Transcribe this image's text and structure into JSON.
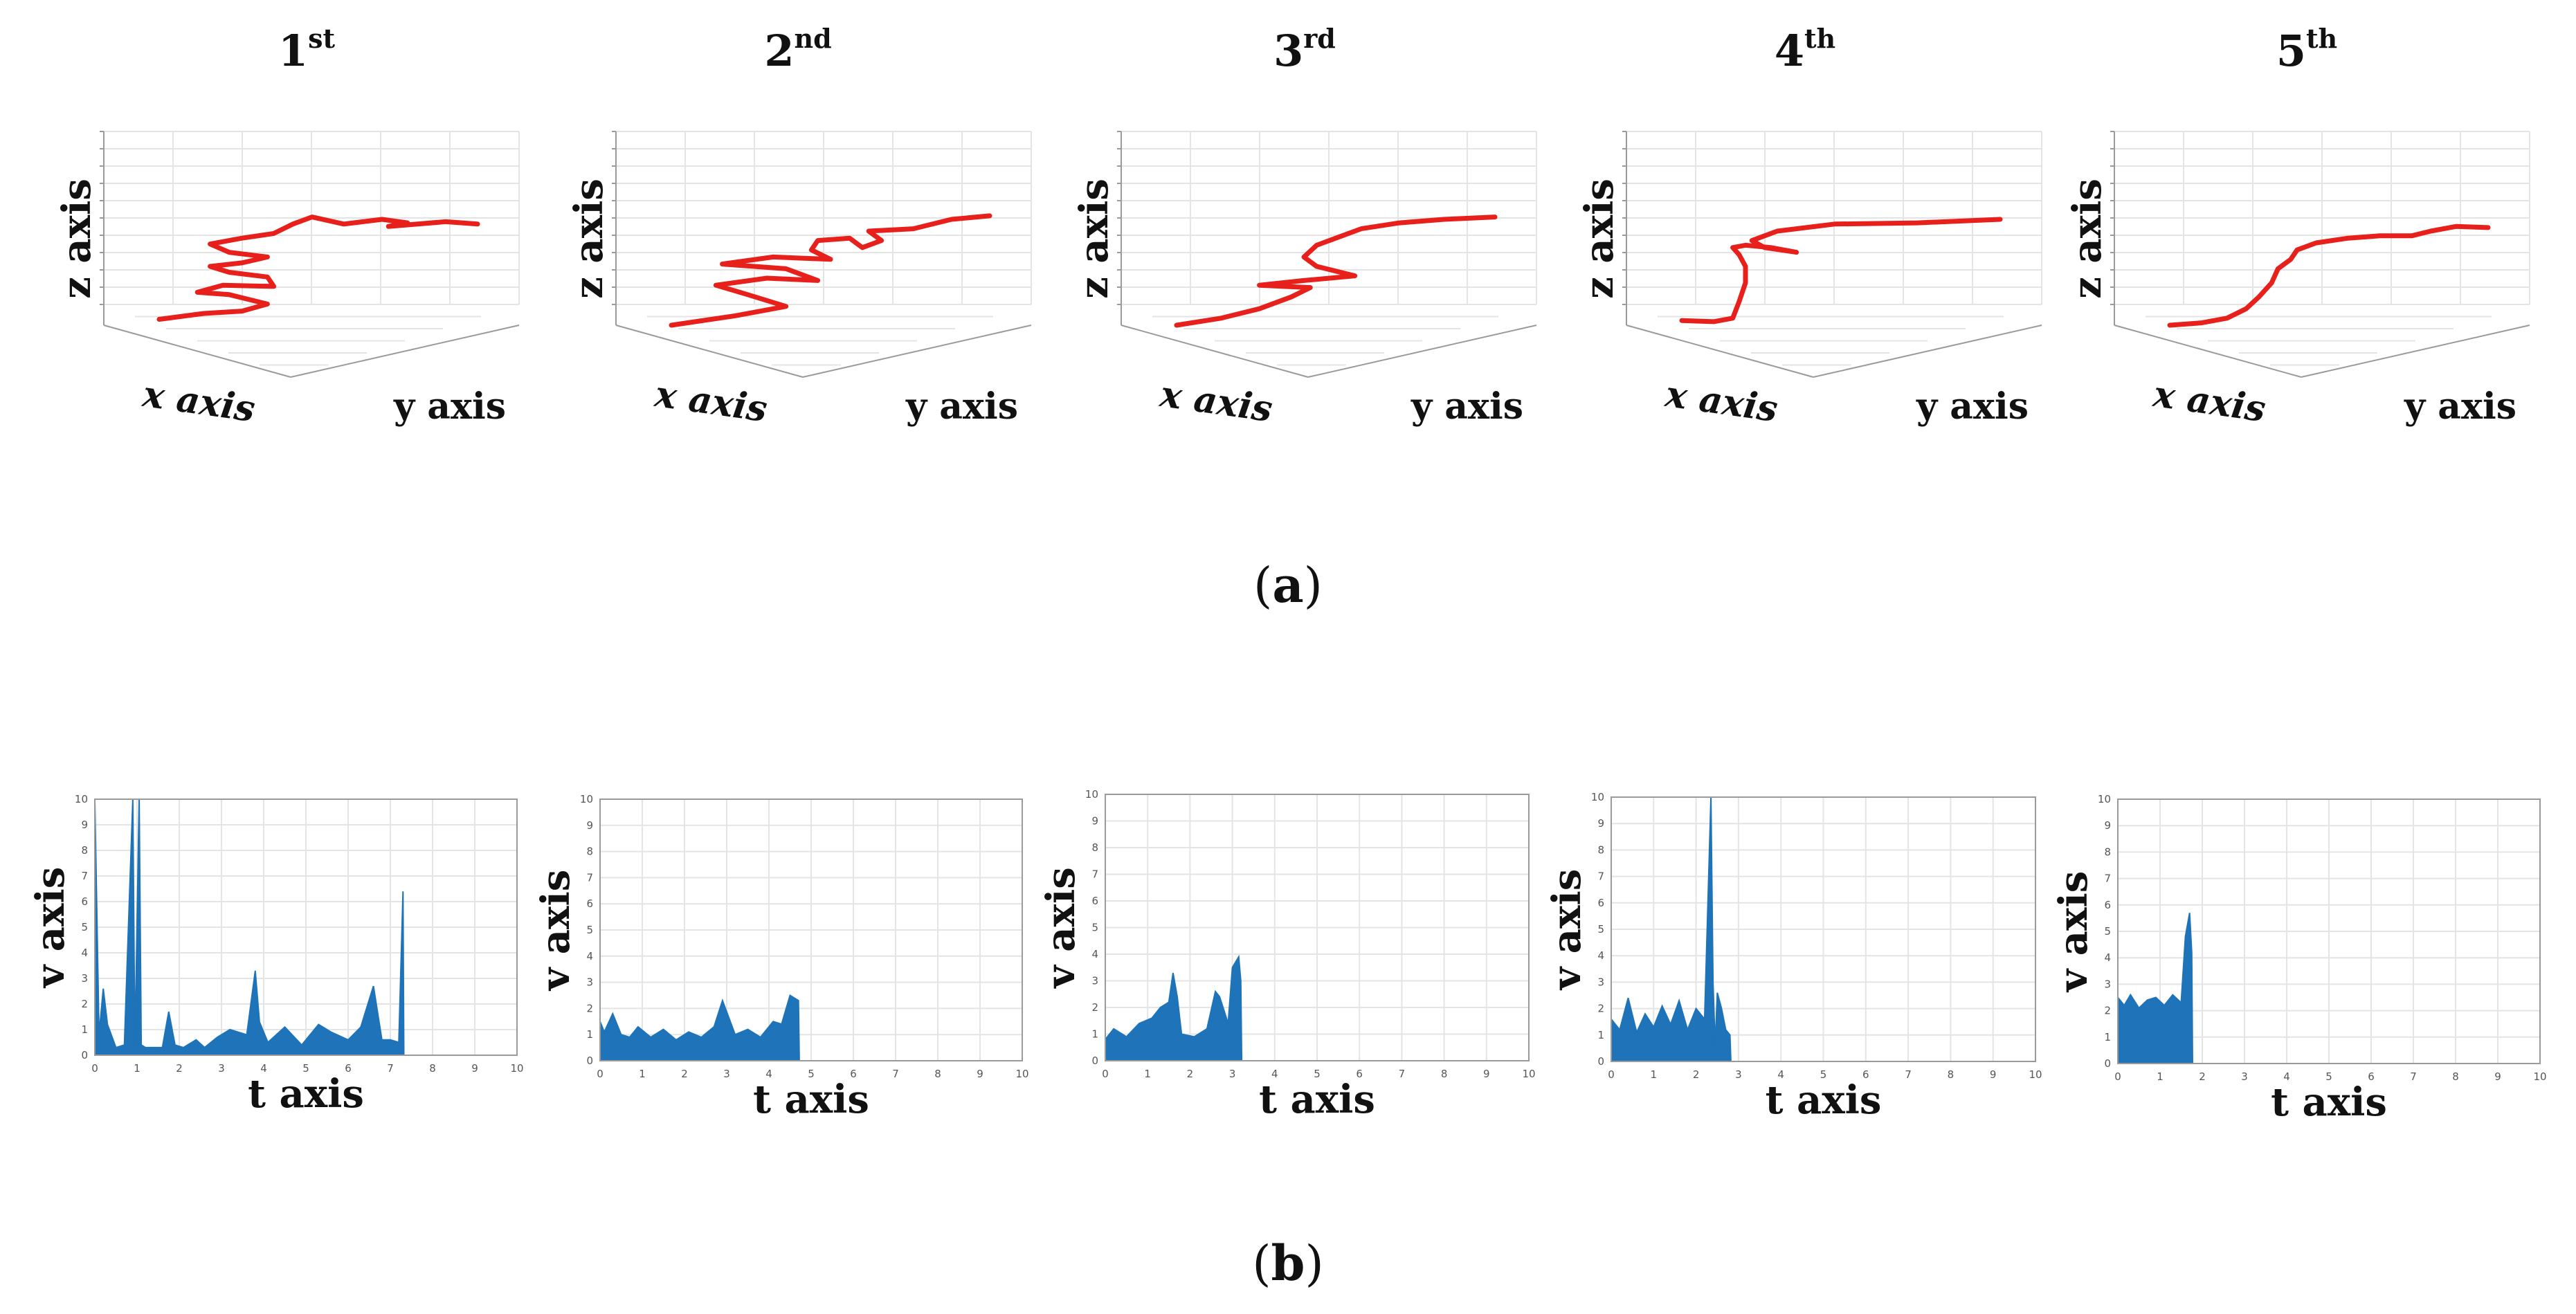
{
  "figure": {
    "panel_a_label": "a",
    "panel_b_label": "b",
    "trials": [
      {
        "num": "1",
        "sup": "st"
      },
      {
        "num": "2",
        "sup": "nd"
      },
      {
        "num": "3",
        "sup": "rd"
      },
      {
        "num": "4",
        "sup": "th"
      },
      {
        "num": "5",
        "sup": "th"
      }
    ],
    "colors": {
      "trajectory": "#e8201c",
      "velocity": "#1f73b8",
      "grid": "#e4e4e4",
      "axis": "#9a9a9a",
      "text": "#111111"
    }
  },
  "chart_data": [
    {
      "type": "line",
      "title": "1st",
      "projection": "3d",
      "xlabel": "x axis",
      "ylabel": "y axis",
      "zlabel": "z axis",
      "path": [
        [
          0,
          0.05
        ],
        [
          0.14,
          0.1
        ],
        [
          0.26,
          0.12
        ],
        [
          0.34,
          0.18
        ],
        [
          0.22,
          0.26
        ],
        [
          0.12,
          0.28
        ],
        [
          0.2,
          0.34
        ],
        [
          0.36,
          0.33
        ],
        [
          0.34,
          0.41
        ],
        [
          0.22,
          0.45
        ],
        [
          0.16,
          0.5
        ],
        [
          0.26,
          0.53
        ],
        [
          0.34,
          0.58
        ],
        [
          0.22,
          0.62
        ],
        [
          0.16,
          0.69
        ],
        [
          0.26,
          0.74
        ],
        [
          0.36,
          0.78
        ],
        [
          0.42,
          0.86
        ],
        [
          0.48,
          0.92
        ],
        [
          0.58,
          0.86
        ],
        [
          0.7,
          0.9
        ],
        [
          0.78,
          0.87
        ],
        [
          0.72,
          0.84
        ],
        [
          0.9,
          0.88
        ],
        [
          1,
          0.86
        ]
      ]
    },
    {
      "type": "line",
      "title": "2nd",
      "projection": "3d",
      "xlabel": "x axis",
      "ylabel": "y axis",
      "zlabel": "z axis",
      "path": [
        [
          0,
          0.0
        ],
        [
          0.2,
          0.08
        ],
        [
          0.36,
          0.16
        ],
        [
          0.24,
          0.26
        ],
        [
          0.14,
          0.34
        ],
        [
          0.3,
          0.4
        ],
        [
          0.46,
          0.38
        ],
        [
          0.36,
          0.48
        ],
        [
          0.16,
          0.52
        ],
        [
          0.32,
          0.58
        ],
        [
          0.5,
          0.56
        ],
        [
          0.44,
          0.64
        ],
        [
          0.46,
          0.72
        ],
        [
          0.56,
          0.74
        ],
        [
          0.6,
          0.66
        ],
        [
          0.66,
          0.72
        ],
        [
          0.62,
          0.8
        ],
        [
          0.76,
          0.82
        ],
        [
          0.88,
          0.9
        ],
        [
          1,
          0.93
        ]
      ]
    },
    {
      "type": "line",
      "title": "3rd",
      "projection": "3d",
      "xlabel": "x axis",
      "ylabel": "y axis",
      "zlabel": "z axis",
      "path": [
        [
          0,
          0.0
        ],
        [
          0.14,
          0.06
        ],
        [
          0.26,
          0.14
        ],
        [
          0.36,
          0.24
        ],
        [
          0.42,
          0.32
        ],
        [
          0.26,
          0.34
        ],
        [
          0.4,
          0.38
        ],
        [
          0.56,
          0.42
        ],
        [
          0.44,
          0.5
        ],
        [
          0.4,
          0.58
        ],
        [
          0.44,
          0.68
        ],
        [
          0.5,
          0.74
        ],
        [
          0.58,
          0.82
        ],
        [
          0.7,
          0.87
        ],
        [
          0.84,
          0.9
        ],
        [
          1,
          0.92
        ]
      ]
    },
    {
      "type": "line",
      "title": "4th",
      "projection": "3d",
      "xlabel": "x axis",
      "ylabel": "y axis",
      "zlabel": "z axis",
      "path": [
        [
          0,
          0.04
        ],
        [
          0.1,
          0.03
        ],
        [
          0.16,
          0.06
        ],
        [
          0.18,
          0.2
        ],
        [
          0.2,
          0.36
        ],
        [
          0.2,
          0.5
        ],
        [
          0.18,
          0.6
        ],
        [
          0.16,
          0.66
        ],
        [
          0.2,
          0.68
        ],
        [
          0.28,
          0.66
        ],
        [
          0.36,
          0.62
        ],
        [
          0.26,
          0.66
        ],
        [
          0.22,
          0.72
        ],
        [
          0.3,
          0.8
        ],
        [
          0.48,
          0.86
        ],
        [
          0.74,
          0.87
        ],
        [
          1,
          0.9
        ]
      ]
    },
    {
      "type": "line",
      "title": "5th",
      "projection": "3d",
      "xlabel": "x axis",
      "ylabel": "y axis",
      "zlabel": "z axis",
      "path": [
        [
          0,
          0.0
        ],
        [
          0.1,
          0.02
        ],
        [
          0.18,
          0.06
        ],
        [
          0.24,
          0.14
        ],
        [
          0.28,
          0.24
        ],
        [
          0.32,
          0.36
        ],
        [
          0.34,
          0.48
        ],
        [
          0.38,
          0.56
        ],
        [
          0.4,
          0.64
        ],
        [
          0.46,
          0.7
        ],
        [
          0.56,
          0.74
        ],
        [
          0.66,
          0.76
        ],
        [
          0.76,
          0.76
        ],
        [
          0.82,
          0.8
        ],
        [
          0.9,
          0.84
        ],
        [
          1,
          0.83
        ]
      ]
    },
    {
      "type": "area",
      "title": "1st",
      "xlabel": "t axis",
      "ylabel": "v axis",
      "xlim": [
        0,
        10
      ],
      "ylim": [
        0,
        10
      ],
      "xticks": [
        "0",
        "1",
        "2",
        "3",
        "4",
        "5",
        "6",
        "7",
        "8",
        "9",
        "10"
      ],
      "yticks": [
        "0",
        "1",
        "2",
        "3",
        "4",
        "5",
        "6",
        "7",
        "8",
        "9",
        "10"
      ],
      "x": [
        0,
        0.1,
        0.2,
        0.3,
        0.5,
        0.7,
        0.9,
        0.95,
        1.05,
        1.1,
        1.2,
        1.6,
        1.75,
        1.9,
        2.1,
        2.4,
        2.6,
        2.9,
        3.2,
        3.6,
        3.8,
        3.9,
        4.1,
        4.5,
        4.9,
        5.3,
        5.6,
        6.0,
        6.3,
        6.6,
        6.8,
        7.0,
        7.2,
        7.3,
        7.32
      ],
      "y": [
        10,
        0.8,
        2.6,
        1.2,
        0.3,
        0.4,
        10,
        0.3,
        10,
        0.4,
        0.3,
        0.3,
        1.7,
        0.4,
        0.3,
        0.6,
        0.3,
        0.7,
        1.0,
        0.8,
        3.3,
        1.3,
        0.5,
        1.1,
        0.4,
        1.2,
        0.9,
        0.6,
        1.1,
        2.7,
        0.6,
        0.6,
        0.5,
        6.4,
        0
      ]
    },
    {
      "type": "area",
      "title": "2nd",
      "xlabel": "t axis",
      "ylabel": "v axis",
      "xlim": [
        0,
        10
      ],
      "ylim": [
        0,
        10
      ],
      "xticks": [
        "0",
        "1",
        "2",
        "3",
        "4",
        "5",
        "6",
        "7",
        "8",
        "9",
        "10"
      ],
      "yticks": [
        "0",
        "1",
        "2",
        "3",
        "4",
        "5",
        "6",
        "7",
        "8",
        "9",
        "10"
      ],
      "x": [
        0,
        0.1,
        0.3,
        0.5,
        0.7,
        0.9,
        1.2,
        1.5,
        1.8,
        2.1,
        2.4,
        2.7,
        2.9,
        3.2,
        3.5,
        3.8,
        4.1,
        4.3,
        4.5,
        4.7,
        4.72
      ],
      "y": [
        1.5,
        1.1,
        1.8,
        1.0,
        0.9,
        1.3,
        0.9,
        1.2,
        0.8,
        1.1,
        0.9,
        1.3,
        2.3,
        1.0,
        1.2,
        0.9,
        1.5,
        1.4,
        2.5,
        2.3,
        0
      ]
    },
    {
      "type": "area",
      "title": "3rd",
      "xlabel": "t axis",
      "ylabel": "v axis",
      "xlim": [
        0,
        10
      ],
      "ylim": [
        0,
        10
      ],
      "xticks": [
        "0",
        "1",
        "2",
        "3",
        "4",
        "5",
        "6",
        "7",
        "8",
        "9",
        "10"
      ],
      "yticks": [
        "0",
        "1",
        "2",
        "3",
        "4",
        "5",
        "6",
        "7",
        "8",
        "9",
        "10"
      ],
      "x": [
        0,
        0.2,
        0.5,
        0.8,
        1.1,
        1.3,
        1.5,
        1.6,
        1.7,
        1.8,
        2.1,
        2.4,
        2.6,
        2.7,
        2.9,
        3.0,
        3.15,
        3.2,
        3.22
      ],
      "y": [
        0.8,
        1.2,
        0.9,
        1.4,
        1.6,
        2.0,
        2.2,
        3.3,
        2.4,
        1.0,
        0.9,
        1.2,
        2.6,
        2.4,
        1.4,
        3.5,
        3.9,
        3.0,
        0
      ]
    },
    {
      "type": "area",
      "title": "4th",
      "xlabel": "t axis",
      "ylabel": "v axis",
      "xlim": [
        0,
        10
      ],
      "ylim": [
        0,
        10
      ],
      "xticks": [
        "0",
        "1",
        "2",
        "3",
        "4",
        "5",
        "6",
        "7",
        "8",
        "9",
        "10"
      ],
      "yticks": [
        "0",
        "1",
        "2",
        "3",
        "4",
        "5",
        "6",
        "7",
        "8",
        "9",
        "10"
      ],
      "x": [
        0,
        0.2,
        0.4,
        0.6,
        0.8,
        1.0,
        1.2,
        1.4,
        1.6,
        1.8,
        2.0,
        2.2,
        2.35,
        2.4,
        2.45,
        2.5,
        2.6,
        2.7,
        2.8,
        2.82
      ],
      "y": [
        1.6,
        1.2,
        2.4,
        1.1,
        1.8,
        1.3,
        2.1,
        1.4,
        2.3,
        1.2,
        2.0,
        1.6,
        10,
        3.0,
        0.6,
        2.6,
        2.0,
        1.2,
        1.0,
        0
      ]
    },
    {
      "type": "area",
      "title": "5th",
      "xlabel": "t axis",
      "ylabel": "v axis",
      "xlim": [
        0,
        10
      ],
      "ylim": [
        0,
        10
      ],
      "xticks": [
        "0",
        "1",
        "2",
        "3",
        "4",
        "5",
        "6",
        "7",
        "8",
        "9",
        "10"
      ],
      "yticks": [
        "0",
        "1",
        "2",
        "3",
        "4",
        "5",
        "6",
        "7",
        "8",
        "9",
        "10"
      ],
      "x": [
        0,
        0.15,
        0.3,
        0.5,
        0.7,
        0.9,
        1.1,
        1.3,
        1.5,
        1.6,
        1.7,
        1.75,
        1.77
      ],
      "y": [
        2.5,
        2.2,
        2.6,
        2.1,
        2.4,
        2.5,
        2.2,
        2.6,
        2.3,
        4.8,
        5.7,
        4.2,
        0
      ]
    }
  ]
}
